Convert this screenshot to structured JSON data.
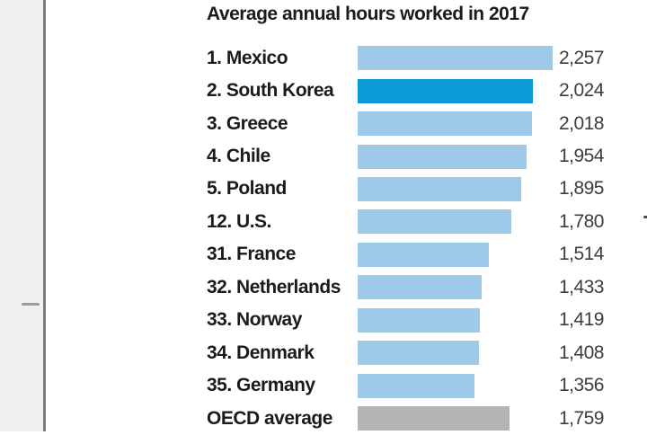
{
  "page": {
    "background": "#ffffff"
  },
  "sidebar": {
    "background": "#f0f0ef",
    "divider_color": "#7b7b7b",
    "dash_color": "#9c9c9c"
  },
  "chart_data": {
    "type": "bar",
    "orientation": "horizontal",
    "title": "Average annual hours worked in 2017",
    "xlabel": "",
    "ylabel": "",
    "xlim": [
      0,
      2257
    ],
    "grid": false,
    "legend": "none",
    "highlight_category": "2. South Korea",
    "categories": [
      "1. Mexico",
      "2. South Korea",
      "3. Greece",
      "4. Chile",
      "5. Poland",
      "12. U.S.",
      "31. France",
      "32. Netherlands",
      "33. Norway",
      "34. Denmark",
      "35. Germany",
      "OECD average"
    ],
    "values": [
      2257,
      2024,
      2018,
      1954,
      1895,
      1780,
      1514,
      1433,
      1419,
      1408,
      1356,
      1759
    ],
    "colors": {
      "bar": "#9fc9e8",
      "highlight": "#0a9ad8",
      "average": "#b4b4b4",
      "title_text": "#1b1b1b",
      "value_text": "#3d3d3d"
    },
    "rows": [
      {
        "label": "1. Mexico",
        "value": 2257,
        "display": "2,257",
        "style": "default"
      },
      {
        "label": "2. South Korea",
        "value": 2024,
        "display": "2,024",
        "style": "highlight"
      },
      {
        "label": "3. Greece",
        "value": 2018,
        "display": "2,018",
        "style": "default"
      },
      {
        "label": "4. Chile",
        "value": 1954,
        "display": "1,954",
        "style": "default"
      },
      {
        "label": "5. Poland",
        "value": 1895,
        "display": "1,895",
        "style": "default"
      },
      {
        "label": "12. U.S.",
        "value": 1780,
        "display": "1,780",
        "style": "default"
      },
      {
        "label": "31. France",
        "value": 1514,
        "display": "1,514",
        "style": "default"
      },
      {
        "label": "32. Netherlands",
        "value": 1433,
        "display": "1,433",
        "style": "default"
      },
      {
        "label": "33. Norway",
        "value": 1419,
        "display": "1,419",
        "style": "default"
      },
      {
        "label": "34. Denmark",
        "value": 1408,
        "display": "1,408",
        "style": "default"
      },
      {
        "label": "35. Germany",
        "value": 1356,
        "display": "1,356",
        "style": "default"
      },
      {
        "label": "OECD average",
        "value": 1759,
        "display": "1,759",
        "style": "average"
      }
    ]
  }
}
